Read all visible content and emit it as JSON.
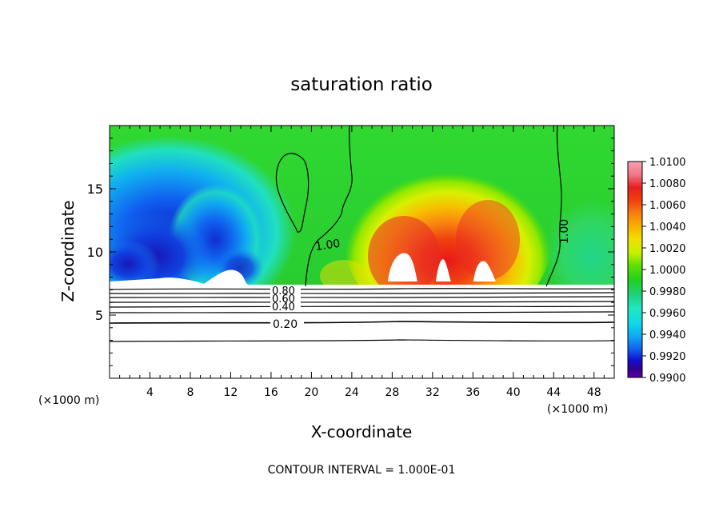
{
  "chart_data": {
    "type": "heatmap",
    "title": "saturation ratio",
    "xlabel": "X-coordinate",
    "ylabel": "Z-coordinate",
    "x_unit": "(×1000 m)",
    "z_unit": "(×1000 m)",
    "xlim": [
      0,
      50
    ],
    "ylim": [
      0,
      20
    ],
    "x_ticks": [
      4,
      8,
      12,
      16,
      20,
      24,
      28,
      32,
      36,
      40,
      44,
      48
    ],
    "y_ticks": [
      5,
      10,
      15
    ],
    "colorbar": {
      "min": 0.99,
      "max": 1.01,
      "labels": [
        "1.0100",
        "1.0080",
        "1.0060",
        "1.0040",
        "1.0020",
        "1.0000",
        "0.9980",
        "0.9960",
        "0.9940",
        "0.9920",
        "0.9900"
      ],
      "colors": [
        "#f8a0b0",
        "#f07888",
        "#e82020",
        "#f04010",
        "#f88010",
        "#f8b000",
        "#f0e000",
        "#c8f000",
        "#60e000",
        "#20d020",
        "#20d080",
        "#20e8c0",
        "#10d8e8",
        "#10a8f0",
        "#1060f0",
        "#1010d0",
        "#300090",
        "#6000a0"
      ]
    },
    "contour_labels": [
      "1.00",
      "1.00",
      "0.80",
      "0.60",
      "0.40",
      "0.20"
    ],
    "contour_interval": "CONTOUR INTERVAL = 1.000E-01"
  }
}
